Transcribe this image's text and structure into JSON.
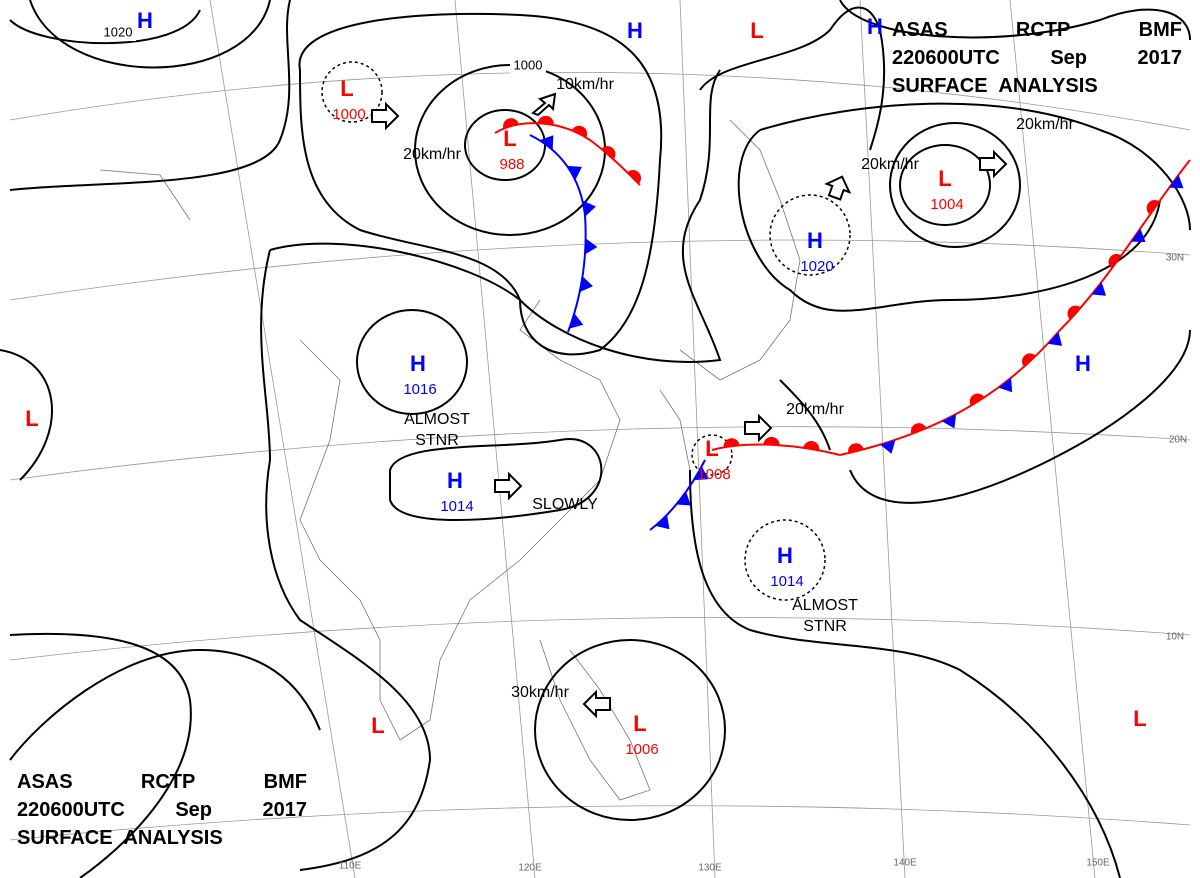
{
  "header_top": {
    "line1": [
      "ASAS",
      "RCTP",
      "BMF"
    ],
    "line2": [
      "220600UTC",
      "Sep",
      "2017"
    ],
    "line3": "SURFACE ANALYSIS"
  },
  "header_bottom": {
    "line1": [
      "ASAS",
      "RCTP",
      "BMF"
    ],
    "line2": [
      "220600UTC",
      "Sep",
      "2017"
    ],
    "line3": "SURFACE ANALYSIS"
  },
  "pressure_centers": [
    {
      "symbol": "H",
      "color": "#0000ff"
    },
    {
      "symbol": "L",
      "pressure": 1000,
      "color": "#ff0000"
    },
    {
      "symbol": "L",
      "pressure": 988,
      "color": "#ff0000"
    },
    {
      "symbol": "H",
      "color": "#0000ff"
    },
    {
      "symbol": "L",
      "color": "#ff0000"
    },
    {
      "symbol": "H",
      "color": "#0000ff"
    },
    {
      "symbol": "L",
      "pressure": 1004,
      "color": "#ff0000"
    },
    {
      "symbol": "H",
      "pressure": 1020,
      "color": "#0000ff"
    },
    {
      "symbol": "H",
      "pressure": 1016,
      "color": "#0000ff"
    },
    {
      "symbol": "H",
      "pressure": 1014,
      "color": "#0000ff"
    },
    {
      "symbol": "L",
      "color": "#ff0000"
    },
    {
      "symbol": "L",
      "pressure": 1008,
      "color": "#ff0000"
    },
    {
      "symbol": "H",
      "pressure": 1014,
      "color": "#0000ff"
    },
    {
      "symbol": "H",
      "color": "#0000ff"
    },
    {
      "symbol": "L",
      "pressure": 1006,
      "color": "#ff0000"
    },
    {
      "symbol": "L",
      "color": "#ff0000"
    },
    {
      "symbol": "L",
      "color": "#ff0000"
    }
  ],
  "isobar_labels": [
    1020,
    1000
  ],
  "annotations": [
    "10km/hr",
    "20km/hr",
    "20km/hr",
    "20km/hr",
    "20km/hr",
    "ALMOST",
    "STNR",
    "SLOWLY",
    "ALMOST",
    "STNR",
    "30km/hr"
  ],
  "latitude_labels": [
    "30N",
    "20N",
    "10N"
  ],
  "longitude_labels": [
    "110E",
    "120E",
    "130E",
    "140E",
    "150E"
  ]
}
